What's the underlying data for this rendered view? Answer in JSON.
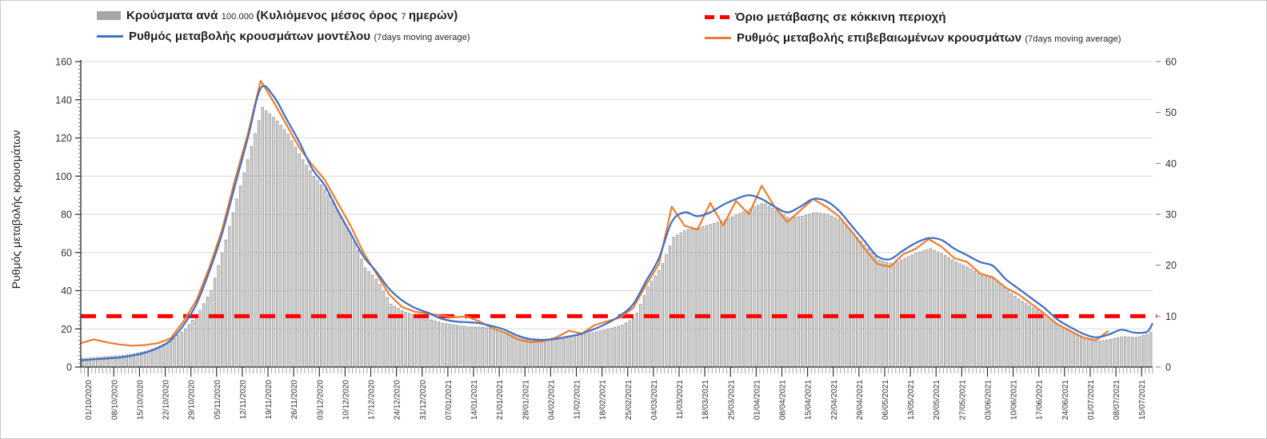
{
  "chart": {
    "y_left_title": "Ρυθμός μεταβολής κρουσμάτων",
    "colors": {
      "bars": "#d6d6d6",
      "bars_outline": "#8c8c8c",
      "bars_legend": "#a6a6a6",
      "model_line": "#4472c4",
      "confirmed_line": "#ed7d31",
      "threshold_line": "#ff0000",
      "gridline": "#d9d9d9",
      "axis": "#262626",
      "tick_label": "#333333"
    },
    "legend": {
      "items": [
        {
          "name": "cases-per-100k",
          "swatch": "gray-bar",
          "segments": [
            {
              "t": "Κρούσματα ανά ",
              "s": false
            },
            {
              "t": "100.000 ",
              "s": true
            },
            {
              "t": "(Κυλιόμενος μέσος όρος ",
              "s": false
            },
            {
              "t": "7 ",
              "s": true
            },
            {
              "t": "ημερών)",
              "s": false
            }
          ]
        },
        {
          "name": "model-rate",
          "swatch": "blue-line",
          "segments": [
            {
              "t": "Ρυθμός μεταβολής κρουσμάτων μοντέλου ",
              "s": false
            },
            {
              "t": "(7days moving average)",
              "s": true
            }
          ]
        },
        {
          "name": "red-zone-threshold",
          "swatch": "red-dash",
          "segments": [
            {
              "t": "Όριο μετάβασης σε κόκκινη περιοχή",
              "s": false
            }
          ]
        },
        {
          "name": "confirmed-rate",
          "swatch": "orange-line",
          "segments": [
            {
              "t": "Ρυθμός μεταβολής επιβεβαιωμένων κρουσμάτων ",
              "s": false
            },
            {
              "t": "(7days moving average)",
              "s": true
            }
          ]
        }
      ]
    }
  },
  "chart_data": {
    "type": "combo (daily bars + 2 lines + horizontal threshold)",
    "start_date": "29/09/2020",
    "end_date": "17/07/2021",
    "sample_interval_days": 3.5,
    "note": "values read against left axis; right axis 0-60 shares same plot height",
    "axes": {
      "left": {
        "title": "Ρυθμός μεταβολής κρουσμάτων",
        "min": 0,
        "max": 160,
        "step": 20,
        "minor_step": 2,
        "ticks": [
          0,
          20,
          40,
          60,
          80,
          100,
          120,
          140,
          160
        ]
      },
      "right": {
        "min": 0,
        "max": 60,
        "step": 10,
        "ticks": [
          0,
          10,
          20,
          30,
          40,
          50,
          60
        ]
      },
      "x": {
        "tick_interval_days": 7,
        "first_tick_day_offset": 2,
        "tick_labels": [
          "01/10/2020",
          "08/10/2020",
          "15/10/2020",
          "22/10/2020",
          "29/10/2020",
          "05/11/2020",
          "12/11/2020",
          "19/11/2020",
          "26/11/2020",
          "03/12/2020",
          "10/12/2020",
          "17/12/2020",
          "24/12/2020",
          "31/12/2020",
          "07/01/2021",
          "14/01/2021",
          "21/01/2021",
          "28/01/2021",
          "04/02/2021",
          "11/02/2021",
          "18/02/2021",
          "25/02/2021",
          "04/03/2021",
          "11/03/2021",
          "18/03/2021",
          "25/03/2021",
          "01/04/2021",
          "08/04/2021",
          "15/04/2021",
          "22/04/2021",
          "29/04/2021",
          "06/05/2021",
          "13/05/2021",
          "20/05/2021",
          "27/05/2021",
          "03/06/2021",
          "10/06/2021",
          "17/06/2021",
          "24/06/2021",
          "01/07/2021",
          "08/07/2021",
          "15/07/2021"
        ]
      }
    },
    "threshold": {
      "label": "Όριο μετάβασης σε κόκκινη περιοχή",
      "value": 10,
      "axis": "right"
    },
    "series": [
      {
        "name": "Κρούσματα ανά 100.000 (Κυλιόμενος μέσος όρος 7 ημερών)",
        "style": "bar",
        "values": [
          4.5,
          5,
          5.5,
          6,
          7,
          8.5,
          11,
          14,
          20,
          28,
          40,
          63,
          88,
          112,
          136,
          130,
          122,
          110,
          100,
          92,
          80,
          68,
          52,
          45,
          33,
          29,
          27,
          25,
          23,
          22,
          21,
          21,
          20,
          18,
          16,
          15,
          14.5,
          15,
          16,
          17,
          18.5,
          20,
          22,
          26,
          42,
          52,
          68,
          72,
          73,
          75,
          77,
          80,
          83,
          86,
          82,
          78,
          79,
          81,
          80,
          77,
          70,
          63,
          56,
          54,
          57,
          60,
          62,
          59,
          55,
          52,
          48,
          46,
          40,
          35,
          31,
          27,
          22,
          18,
          14.5,
          13.5,
          14.5,
          16,
          15.5,
          17.5,
          22
        ]
      },
      {
        "name": "Ρυθμός μεταβολής κρουσμάτων μοντέλου (7days moving average)",
        "style": "line-smooth",
        "values": [
          3.5,
          4,
          4.5,
          5,
          6,
          7.5,
          10,
          14,
          22,
          33,
          50,
          70,
          95,
          120,
          146,
          142,
          130,
          118,
          104,
          95,
          82,
          70,
          58,
          50,
          41,
          35,
          31,
          28.5,
          25.5,
          24,
          23.5,
          23,
          21.5,
          19.5,
          16.5,
          14.5,
          14.2,
          14.8,
          16,
          17.5,
          20,
          23,
          27,
          33,
          45,
          57,
          76,
          81,
          79,
          81,
          85,
          88,
          90,
          88,
          84,
          81,
          84,
          88,
          87,
          82,
          74,
          66,
          58,
          56.5,
          61,
          65,
          67.5,
          66.5,
          62,
          58.5,
          55,
          53,
          46,
          41,
          36,
          31,
          25,
          21,
          17.5,
          15.5,
          17,
          19.5,
          18,
          18.5,
          23
        ]
      },
      {
        "name": "Ρυθμός μεταβολής επιβεβαιωμένων κρουσμάτων (7days moving average)",
        "style": "line-jagged",
        "values": [
          12.5,
          14.5,
          13,
          11.8,
          11.2,
          11.5,
          12.5,
          15,
          24,
          35,
          52,
          72,
          98,
          122,
          150,
          139,
          127,
          115,
          106,
          98,
          86,
          74,
          60,
          49,
          38,
          31.5,
          29,
          28,
          27,
          26,
          26.5,
          24,
          20.5,
          18,
          14.5,
          13,
          13.5,
          15.5,
          19,
          17.5,
          22,
          24,
          26,
          31,
          43,
          54,
          84,
          74,
          72,
          86,
          74,
          87,
          80,
          95,
          84,
          76,
          82,
          88,
          84,
          79,
          71,
          62,
          54,
          52.5,
          59,
          62,
          67,
          63,
          57,
          55,
          49,
          47,
          41.5,
          38,
          33,
          28,
          22.5,
          19,
          15.5,
          14,
          19,
          null,
          null,
          null,
          null
        ]
      }
    ]
  }
}
